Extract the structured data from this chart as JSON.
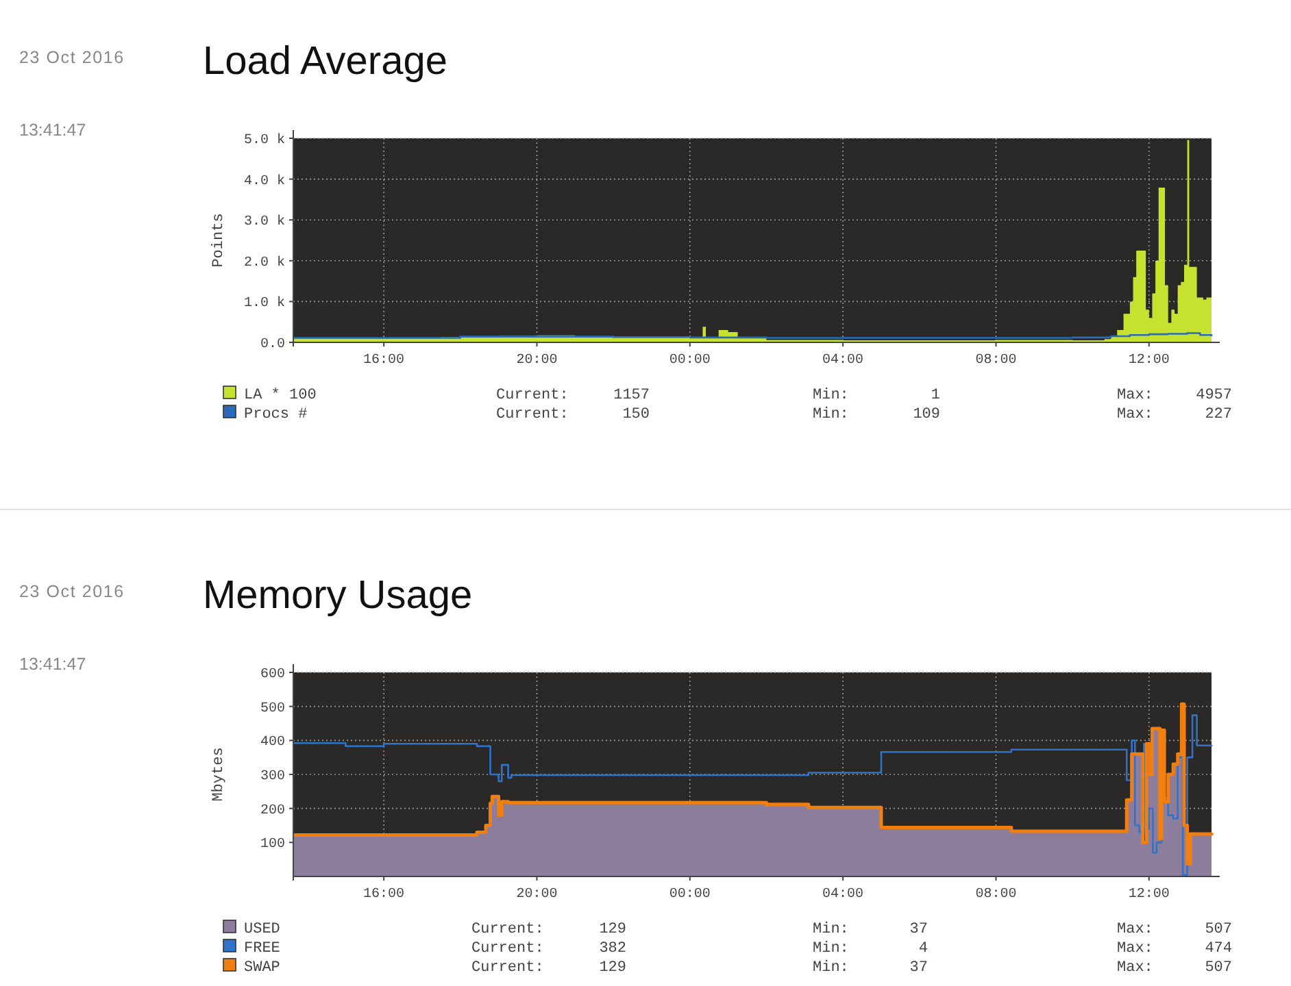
{
  "chart_data": [
    {
      "type": "area",
      "title": "Load Average",
      "ylabel": "Points",
      "grid": true,
      "legend": "bottom left",
      "xlim": [
        "2016-10-22T13:38",
        "2016-10-23T13:38"
      ],
      "xticks": [
        {
          "value": "2016-10-22T16:00",
          "label": "16:00"
        },
        {
          "value": "2016-10-22T20:00",
          "label": "20:00"
        },
        {
          "value": "2016-10-23T00:00",
          "label": "00:00"
        },
        {
          "value": "2016-10-23T04:00",
          "label": "04:00"
        },
        {
          "value": "2016-10-23T08:00",
          "label": "08:00"
        },
        {
          "value": "2016-10-23T12:00",
          "label": "12:00"
        }
      ],
      "ylim": [
        0,
        5000
      ],
      "yticks": [
        {
          "value": 0,
          "label": "0.0"
        },
        {
          "value": 1000,
          "label": "1.0 k"
        },
        {
          "value": 2000,
          "label": "2.0 k"
        },
        {
          "value": 3000,
          "label": "3.0 k"
        },
        {
          "value": 4000,
          "label": "4.0 k"
        },
        {
          "value": 5000,
          "label": "5.0 k"
        }
      ],
      "annotations": [
        "23 Oct 2016",
        "13:41:47",
        "Current:",
        "1157",
        "Min:",
        "1",
        "Max:",
        "4957",
        "Current:",
        "150",
        "Min:",
        "109",
        "Max:",
        "227"
      ],
      "series": [
        {
          "name": "LA * 100",
          "type": "area",
          "color": "#c6e12e",
          "x": [
            "2016-10-22T13:38",
            "2016-10-22T14:30",
            "2016-10-22T15:30",
            "2016-10-22T16:30",
            "2016-10-22T17:30",
            "2016-10-22T18:30",
            "2016-10-22T19:00",
            "2016-10-22T20:00",
            "2016-10-22T21:00",
            "2016-10-22T22:00",
            "2016-10-22T23:00",
            "2016-10-23T00:00",
            "2016-10-23T00:15",
            "2016-10-23T00:20",
            "2016-10-23T00:25",
            "2016-10-23T00:45",
            "2016-10-23T01:00",
            "2016-10-23T01:15",
            "2016-10-23T02:00",
            "2016-10-23T04:00",
            "2016-10-23T06:00",
            "2016-10-23T08:00",
            "2016-10-23T10:00",
            "2016-10-23T10:50",
            "2016-10-23T11:00",
            "2016-10-23T11:10",
            "2016-10-23T11:20",
            "2016-10-23T11:30",
            "2016-10-23T11:35",
            "2016-10-23T11:40",
            "2016-10-23T11:50",
            "2016-10-23T11:55",
            "2016-10-23T12:00",
            "2016-10-23T12:05",
            "2016-10-23T12:10",
            "2016-10-23T12:15",
            "2016-10-23T12:22",
            "2016-10-23T12:25",
            "2016-10-23T12:30",
            "2016-10-23T12:35",
            "2016-10-23T12:40",
            "2016-10-23T12:45",
            "2016-10-23T12:50",
            "2016-10-23T12:55",
            "2016-10-23T13:00",
            "2016-10-23T13:03",
            "2016-10-23T13:10",
            "2016-10-23T13:15",
            "2016-10-23T13:25",
            "2016-10-23T13:30",
            "2016-10-23T13:38"
          ],
          "values": [
            100,
            110,
            100,
            110,
            130,
            150,
            160,
            170,
            140,
            140,
            120,
            100,
            120,
            380,
            120,
            300,
            250,
            100,
            60,
            50,
            50,
            60,
            50,
            80,
            150,
            300,
            700,
            1000,
            1600,
            2250,
            2250,
            800,
            600,
            1200,
            2000,
            3790,
            3790,
            1400,
            480,
            800,
            700,
            1400,
            1480,
            1900,
            4957,
            1850,
            1850,
            1100,
            1050,
            1100,
            1157
          ]
        },
        {
          "name": "Procs #",
          "type": "step",
          "color": "#2a6ab8",
          "x": [
            "2016-10-22T13:38",
            "2016-10-22T16:00",
            "2016-10-22T18:00",
            "2016-10-22T20:00",
            "2016-10-22T22:00",
            "2016-10-23T00:00",
            "2016-10-23T02:00",
            "2016-10-23T06:00",
            "2016-10-23T10:00",
            "2016-10-23T11:00",
            "2016-10-23T11:30",
            "2016-10-23T12:00",
            "2016-10-23T12:30",
            "2016-10-23T13:00",
            "2016-10-23T13:20",
            "2016-10-23T13:38"
          ],
          "values": [
            110,
            110,
            140,
            140,
            130,
            120,
            109,
            110,
            120,
            150,
            180,
            200,
            210,
            227,
            180,
            150
          ]
        }
      ]
    },
    {
      "type": "area",
      "title": "Memory Usage",
      "ylabel": "Mbytes",
      "grid": true,
      "legend": "bottom left",
      "xlim": [
        "2016-10-22T13:38",
        "2016-10-23T13:38"
      ],
      "xticks": [
        {
          "value": "2016-10-22T16:00",
          "label": "16:00"
        },
        {
          "value": "2016-10-22T20:00",
          "label": "20:00"
        },
        {
          "value": "2016-10-23T00:00",
          "label": "00:00"
        },
        {
          "value": "2016-10-23T04:00",
          "label": "04:00"
        },
        {
          "value": "2016-10-23T08:00",
          "label": "08:00"
        },
        {
          "value": "2016-10-23T12:00",
          "label": "12:00"
        }
      ],
      "ylim": [
        0,
        600
      ],
      "yticks": [
        100,
        200,
        300,
        400,
        500,
        600
      ],
      "annotations": [
        "23 Oct 2016",
        "13:41:47",
        "Current:",
        "129",
        "Min:",
        "37",
        "Max:",
        "507",
        "Current:",
        "382",
        "Min:",
        "4",
        "Max:",
        "474",
        "Current:",
        "129",
        "Min:",
        "37",
        "Max:",
        "507"
      ],
      "series": [
        {
          "name": "USED",
          "type": "area",
          "color": "#8d7d9d",
          "x": [
            "2016-10-22T13:38",
            "2016-10-22T18:26",
            "2016-10-22T18:40",
            "2016-10-22T18:47",
            "2016-10-22T18:50",
            "2016-10-22T19:00",
            "2016-10-22T19:05",
            "2016-10-22T19:15",
            "2016-10-23T02:00",
            "2016-10-23T03:06",
            "2016-10-23T05:00",
            "2016-10-23T08:24",
            "2016-10-23T11:25",
            "2016-10-23T11:33",
            "2016-10-23T11:50",
            "2016-10-23T11:56",
            "2016-10-23T12:02",
            "2016-10-23T12:05",
            "2016-10-23T12:17",
            "2016-10-23T12:20",
            "2016-10-23T12:24",
            "2016-10-23T12:30",
            "2016-10-23T12:38",
            "2016-10-23T12:45",
            "2016-10-23T12:51",
            "2016-10-23T12:55",
            "2016-10-23T13:00",
            "2016-10-23T13:05",
            "2016-10-23T13:30",
            "2016-10-23T13:38"
          ],
          "values": [
            122,
            130,
            150,
            215,
            235,
            180,
            220,
            217,
            212,
            203,
            144,
            133,
            225,
            360,
            100,
            390,
            300,
            435,
            111,
            430,
            220,
            300,
            330,
            360,
            507,
            150,
            37,
            125,
            125,
            129
          ]
        },
        {
          "name": "FREE",
          "type": "step",
          "color": "#2f74cc",
          "x": [
            "2016-10-22T13:38",
            "2016-10-22T15:00",
            "2016-10-22T16:00",
            "2016-10-22T18:26",
            "2016-10-22T18:47",
            "2016-10-22T19:00",
            "2016-10-22T19:05",
            "2016-10-22T19:15",
            "2016-10-22T19:20",
            "2016-10-23T03:06",
            "2016-10-23T05:00",
            "2016-10-23T08:24",
            "2016-10-23T11:25",
            "2016-10-23T11:33",
            "2016-10-23T11:38",
            "2016-10-23T11:45",
            "2016-10-23T11:52",
            "2016-10-23T11:55",
            "2016-10-23T12:00",
            "2016-10-23T12:06",
            "2016-10-23T12:12",
            "2016-10-23T12:20",
            "2016-10-23T12:30",
            "2016-10-23T12:38",
            "2016-10-23T12:45",
            "2016-10-23T12:53",
            "2016-10-23T13:00",
            "2016-10-23T13:08",
            "2016-10-23T13:15",
            "2016-10-23T13:38"
          ],
          "values": [
            392,
            383,
            390,
            383,
            300,
            280,
            328,
            290,
            298,
            305,
            366,
            373,
            283,
            400,
            150,
            130,
            390,
            140,
            200,
            70,
            100,
            230,
            180,
            170,
            350,
            4,
            350,
            474,
            385,
            382
          ]
        },
        {
          "name": "SWAP",
          "type": "step",
          "color": "#f07f10",
          "x": [
            "2016-10-22T13:38",
            "2016-10-22T18:26",
            "2016-10-22T18:40",
            "2016-10-22T18:47",
            "2016-10-22T18:50",
            "2016-10-22T19:00",
            "2016-10-22T19:05",
            "2016-10-22T19:15",
            "2016-10-23T02:00",
            "2016-10-23T03:06",
            "2016-10-23T05:00",
            "2016-10-23T08:24",
            "2016-10-23T11:25",
            "2016-10-23T11:33",
            "2016-10-23T11:50",
            "2016-10-23T11:56",
            "2016-10-23T12:02",
            "2016-10-23T12:05",
            "2016-10-23T12:17",
            "2016-10-23T12:20",
            "2016-10-23T12:24",
            "2016-10-23T12:30",
            "2016-10-23T12:38",
            "2016-10-23T12:45",
            "2016-10-23T12:51",
            "2016-10-23T12:55",
            "2016-10-23T13:00",
            "2016-10-23T13:05",
            "2016-10-23T13:30",
            "2016-10-23T13:38"
          ],
          "values": [
            122,
            130,
            150,
            215,
            235,
            180,
            220,
            217,
            212,
            203,
            144,
            133,
            225,
            360,
            100,
            390,
            300,
            435,
            111,
            430,
            220,
            300,
            330,
            360,
            507,
            150,
            37,
            125,
            125,
            129
          ]
        }
      ]
    }
  ]
}
